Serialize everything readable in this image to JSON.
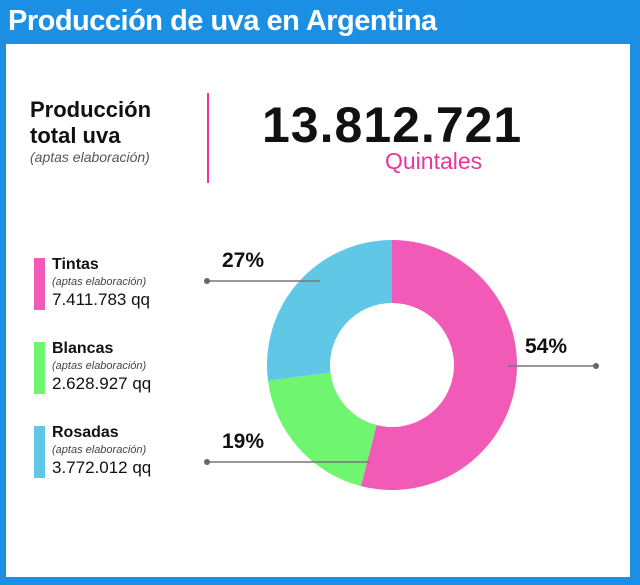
{
  "header": {
    "title": "Producción de uva en Argentina"
  },
  "total": {
    "label_line1": "Producción",
    "label_line2": "total uva",
    "note": "(aptas elaboración)",
    "value": "13.812.721",
    "unit": "Quintales"
  },
  "legend": [
    {
      "name": "Tintas",
      "note": "(aptas elaboración)",
      "value": "7.411.783 qq",
      "color": "#f25ab8"
    },
    {
      "name": "Blancas",
      "note": "(aptas elaboración)",
      "value": "2.628.927 qq",
      "color": "#6ff56f"
    },
    {
      "name": "Rosadas",
      "note": "(aptas elaboración)",
      "value": "3.772.012 qq",
      "color": "#60c8e6"
    }
  ],
  "chart_data": {
    "type": "pie",
    "donut": true,
    "title": "",
    "categories": [
      "Tintas",
      "Blancas",
      "Rosadas"
    ],
    "values": [
      54,
      19,
      27
    ],
    "labels": [
      "54%",
      "19%",
      "27%"
    ],
    "colors": [
      "#f25ab8",
      "#6ff56f",
      "#60c8e6"
    ],
    "legend_position": "left"
  }
}
